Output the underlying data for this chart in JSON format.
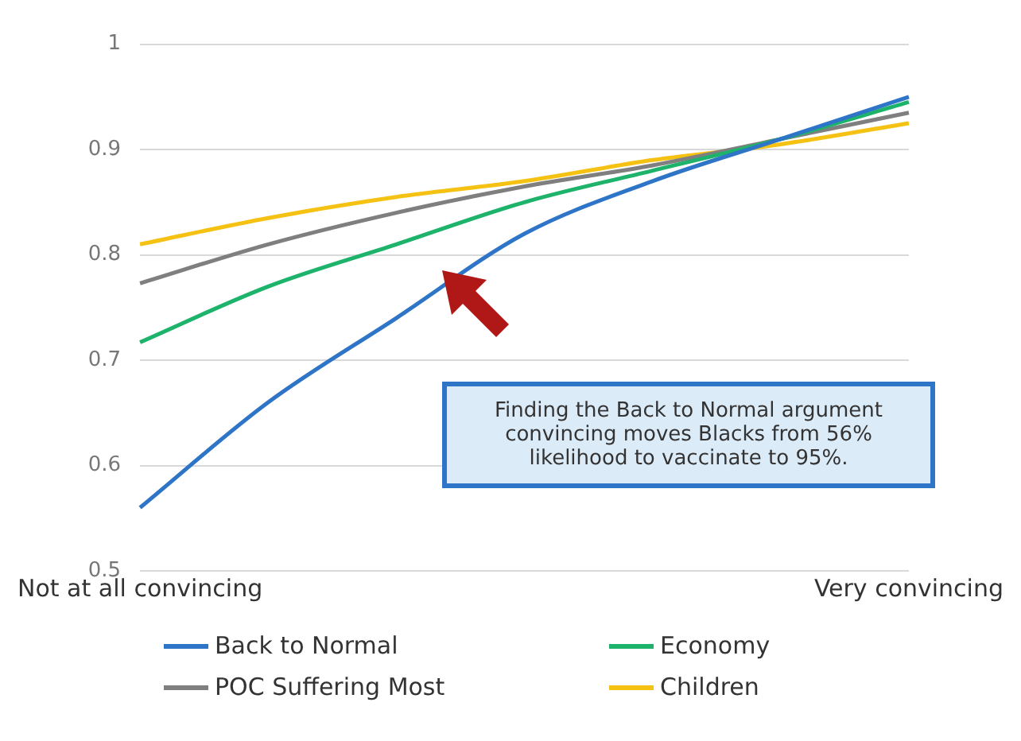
{
  "chart_data": {
    "type": "line",
    "categories": [
      "Not at all convincing",
      null,
      null,
      null,
      null,
      null,
      "Very convincing"
    ],
    "series": [
      {
        "name": "Back to Normal",
        "color": "#2e75c7",
        "values": [
          0.56,
          0.66,
          0.74,
          0.82,
          0.87,
          0.91,
          0.95
        ]
      },
      {
        "name": "Economy",
        "color": "#1db36b",
        "values": [
          0.717,
          0.77,
          0.81,
          0.85,
          0.88,
          0.91,
          0.945
        ]
      },
      {
        "name": "POC Suffering Most",
        "color": "#7f7f7f",
        "values": [
          0.773,
          0.81,
          0.84,
          0.865,
          0.885,
          0.91,
          0.935
        ]
      },
      {
        "name": "Children",
        "color": "#f5c214",
        "values": [
          0.81,
          0.835,
          0.855,
          0.87,
          0.89,
          0.905,
          0.925
        ]
      }
    ],
    "ylim": [
      0.5,
      1
    ],
    "yticks": [
      0.5,
      0.6,
      0.7,
      0.8,
      0.9,
      1
    ],
    "grid": "y",
    "legend": "bottom",
    "marker": "none",
    "line_style": "solid",
    "annotations": [
      "Finding the Back to Normal argument convincing moves Blacks from 56% likelihood to vaccinate to 95%."
    ]
  }
}
